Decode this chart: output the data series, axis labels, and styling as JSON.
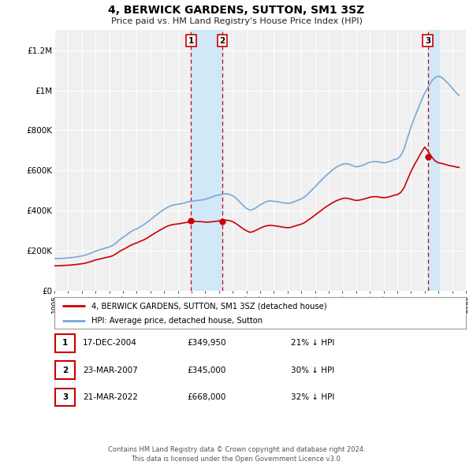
{
  "title": "4, BERWICK GARDENS, SUTTON, SM1 3SZ",
  "subtitle": "Price paid vs. HM Land Registry's House Price Index (HPI)",
  "bg_color": "#ffffff",
  "plot_bg_color": "#f0f0f0",
  "grid_color": "#ffffff",
  "red_color": "#cc0000",
  "blue_color": "#7aa8d2",
  "shade_color": "#d0e8f8",
  "ylim_max": 1300000,
  "yticks": [
    0,
    200000,
    400000,
    600000,
    800000,
    1000000,
    1200000
  ],
  "ytick_labels": [
    "£0",
    "£200K",
    "£400K",
    "£600K",
    "£800K",
    "£1M",
    "£1.2M"
  ],
  "xmin_year": 1995,
  "xmax_year": 2025,
  "xticks": [
    1995,
    1996,
    1997,
    1998,
    1999,
    2000,
    2001,
    2002,
    2003,
    2004,
    2005,
    2006,
    2007,
    2008,
    2009,
    2010,
    2011,
    2012,
    2013,
    2014,
    2015,
    2016,
    2017,
    2018,
    2019,
    2020,
    2021,
    2022,
    2023,
    2024,
    2025
  ],
  "tx1_x": 2004.96,
  "tx2_x": 2007.23,
  "tx3_x": 2022.22,
  "tx1_y": 349950,
  "tx2_y": 345000,
  "tx3_y": 668000,
  "table_rows": [
    {
      "num": "1",
      "date": "17-DEC-2004",
      "price": "£349,950",
      "pct": "21% ↓ HPI"
    },
    {
      "num": "2",
      "date": "23-MAR-2007",
      "price": "£345,000",
      "pct": "30% ↓ HPI"
    },
    {
      "num": "3",
      "date": "21-MAR-2022",
      "price": "£668,000",
      "pct": "32% ↓ HPI"
    }
  ],
  "footer": "Contains HM Land Registry data © Crown copyright and database right 2024.\nThis data is licensed under the Open Government Licence v3.0.",
  "hpi_years": [
    1995.0,
    1995.25,
    1995.5,
    1995.75,
    1996.0,
    1996.25,
    1996.5,
    1996.75,
    1997.0,
    1997.25,
    1997.5,
    1997.75,
    1998.0,
    1998.25,
    1998.5,
    1998.75,
    1999.0,
    1999.25,
    1999.5,
    1999.75,
    2000.0,
    2000.25,
    2000.5,
    2000.75,
    2001.0,
    2001.25,
    2001.5,
    2001.75,
    2002.0,
    2002.25,
    2002.5,
    2002.75,
    2003.0,
    2003.25,
    2003.5,
    2003.75,
    2004.0,
    2004.25,
    2004.5,
    2004.75,
    2005.0,
    2005.25,
    2005.5,
    2005.75,
    2006.0,
    2006.25,
    2006.5,
    2006.75,
    2007.0,
    2007.25,
    2007.5,
    2007.75,
    2008.0,
    2008.25,
    2008.5,
    2008.75,
    2009.0,
    2009.25,
    2009.5,
    2009.75,
    2010.0,
    2010.25,
    2010.5,
    2010.75,
    2011.0,
    2011.25,
    2011.5,
    2011.75,
    2012.0,
    2012.25,
    2012.5,
    2012.75,
    2013.0,
    2013.25,
    2013.5,
    2013.75,
    2014.0,
    2014.25,
    2014.5,
    2014.75,
    2015.0,
    2015.25,
    2015.5,
    2015.75,
    2016.0,
    2016.25,
    2016.5,
    2016.75,
    2017.0,
    2017.25,
    2017.5,
    2017.75,
    2018.0,
    2018.25,
    2018.5,
    2018.75,
    2019.0,
    2019.25,
    2019.5,
    2019.75,
    2020.0,
    2020.25,
    2020.5,
    2020.75,
    2021.0,
    2021.25,
    2021.5,
    2021.75,
    2022.0,
    2022.25,
    2022.5,
    2022.75,
    2023.0,
    2023.25,
    2023.5,
    2023.75,
    2024.0,
    2024.25,
    2024.5
  ],
  "hpi_vals": [
    160000,
    160000,
    161000,
    162000,
    163000,
    165000,
    167000,
    170000,
    173000,
    177000,
    183000,
    190000,
    197000,
    203000,
    208000,
    213000,
    218000,
    226000,
    238000,
    254000,
    266000,
    278000,
    291000,
    301000,
    308000,
    318000,
    328000,
    341000,
    354000,
    368000,
    381000,
    394000,
    406000,
    416000,
    424000,
    428000,
    431000,
    434000,
    438000,
    444000,
    446000,
    449000,
    451000,
    453000,
    456000,
    461000,
    468000,
    474000,
    478000,
    481000,
    484000,
    481000,
    474000,
    461000,
    444000,
    426000,
    411000,
    401000,
    406000,
    416000,
    428000,
    438000,
    446000,
    448000,
    446000,
    444000,
    441000,
    438000,
    436000,
    438000,
    444000,
    451000,
    458000,
    468000,
    484000,
    501000,
    518000,
    536000,
    554000,
    571000,
    586000,
    601000,
    614000,
    624000,
    631000,
    634000,
    631000,
    624000,
    618000,
    621000,
    626000,
    634000,
    641000,
    644000,
    644000,
    641000,
    638000,
    641000,
    646000,
    654000,
    658000,
    674000,
    708000,
    764000,
    818000,
    864000,
    906000,
    948000,
    986000,
    1016000,
    1046000,
    1064000,
    1071000,
    1064000,
    1048000,
    1031000,
    1011000,
    991000,
    974000
  ],
  "red_years": [
    1995.0,
    1995.25,
    1995.5,
    1995.75,
    1996.0,
    1996.25,
    1996.5,
    1996.75,
    1997.0,
    1997.25,
    1997.5,
    1997.75,
    1998.0,
    1998.25,
    1998.5,
    1998.75,
    1999.0,
    1999.25,
    1999.5,
    1999.75,
    2000.0,
    2000.25,
    2000.5,
    2000.75,
    2001.0,
    2001.25,
    2001.5,
    2001.75,
    2002.0,
    2002.25,
    2002.5,
    2002.75,
    2003.0,
    2003.25,
    2003.5,
    2003.75,
    2004.0,
    2004.25,
    2004.5,
    2004.75,
    2005.0,
    2005.25,
    2005.5,
    2005.75,
    2006.0,
    2006.25,
    2006.5,
    2006.75,
    2007.0,
    2007.25,
    2007.5,
    2007.75,
    2008.0,
    2008.25,
    2008.5,
    2008.75,
    2009.0,
    2009.25,
    2009.5,
    2009.75,
    2010.0,
    2010.25,
    2010.5,
    2010.75,
    2011.0,
    2011.25,
    2011.5,
    2011.75,
    2012.0,
    2012.25,
    2012.5,
    2012.75,
    2013.0,
    2013.25,
    2013.5,
    2013.75,
    2014.0,
    2014.25,
    2014.5,
    2014.75,
    2015.0,
    2015.25,
    2015.5,
    2015.75,
    2016.0,
    2016.25,
    2016.5,
    2016.75,
    2017.0,
    2017.25,
    2017.5,
    2017.75,
    2018.0,
    2018.25,
    2018.5,
    2018.75,
    2019.0,
    2019.25,
    2019.5,
    2019.75,
    2020.0,
    2020.25,
    2020.5,
    2020.75,
    2021.0,
    2021.25,
    2021.5,
    2021.75,
    2022.0,
    2022.25,
    2022.5,
    2022.75,
    2023.0,
    2023.25,
    2023.5,
    2023.75,
    2024.0,
    2024.25,
    2024.5
  ],
  "red_vals": [
    124000,
    124000,
    125000,
    126000,
    127000,
    128000,
    130000,
    132000,
    134000,
    137000,
    142000,
    147000,
    153000,
    157000,
    161000,
    165000,
    169000,
    174000,
    184000,
    196000,
    205000,
    214000,
    224000,
    232000,
    238000,
    246000,
    253000,
    262000,
    273000,
    284000,
    294000,
    304000,
    314000,
    322000,
    328000,
    331000,
    333000,
    336000,
    339000,
    342000,
    344000,
    345000,
    345000,
    344000,
    342000,
    342000,
    344000,
    346000,
    348000,
    350000,
    352000,
    350000,
    344000,
    334000,
    322000,
    309000,
    299000,
    291000,
    295000,
    303000,
    312000,
    319000,
    324000,
    326000,
    324000,
    322000,
    319000,
    316000,
    314000,
    316000,
    322000,
    327000,
    332000,
    340000,
    352000,
    364000,
    377000,
    390000,
    403000,
    416000,
    427000,
    438000,
    447000,
    454000,
    460000,
    462000,
    459000,
    454000,
    450000,
    452000,
    456000,
    461000,
    466000,
    469000,
    469000,
    466000,
    464000,
    466000,
    470000,
    476000,
    479000,
    490000,
    515000,
    556000,
    595000,
    629000,
    659000,
    690000,
    717000,
    695000,
    668000,
    648000,
    638000,
    635000,
    630000,
    625000,
    622000,
    618000,
    615000
  ]
}
